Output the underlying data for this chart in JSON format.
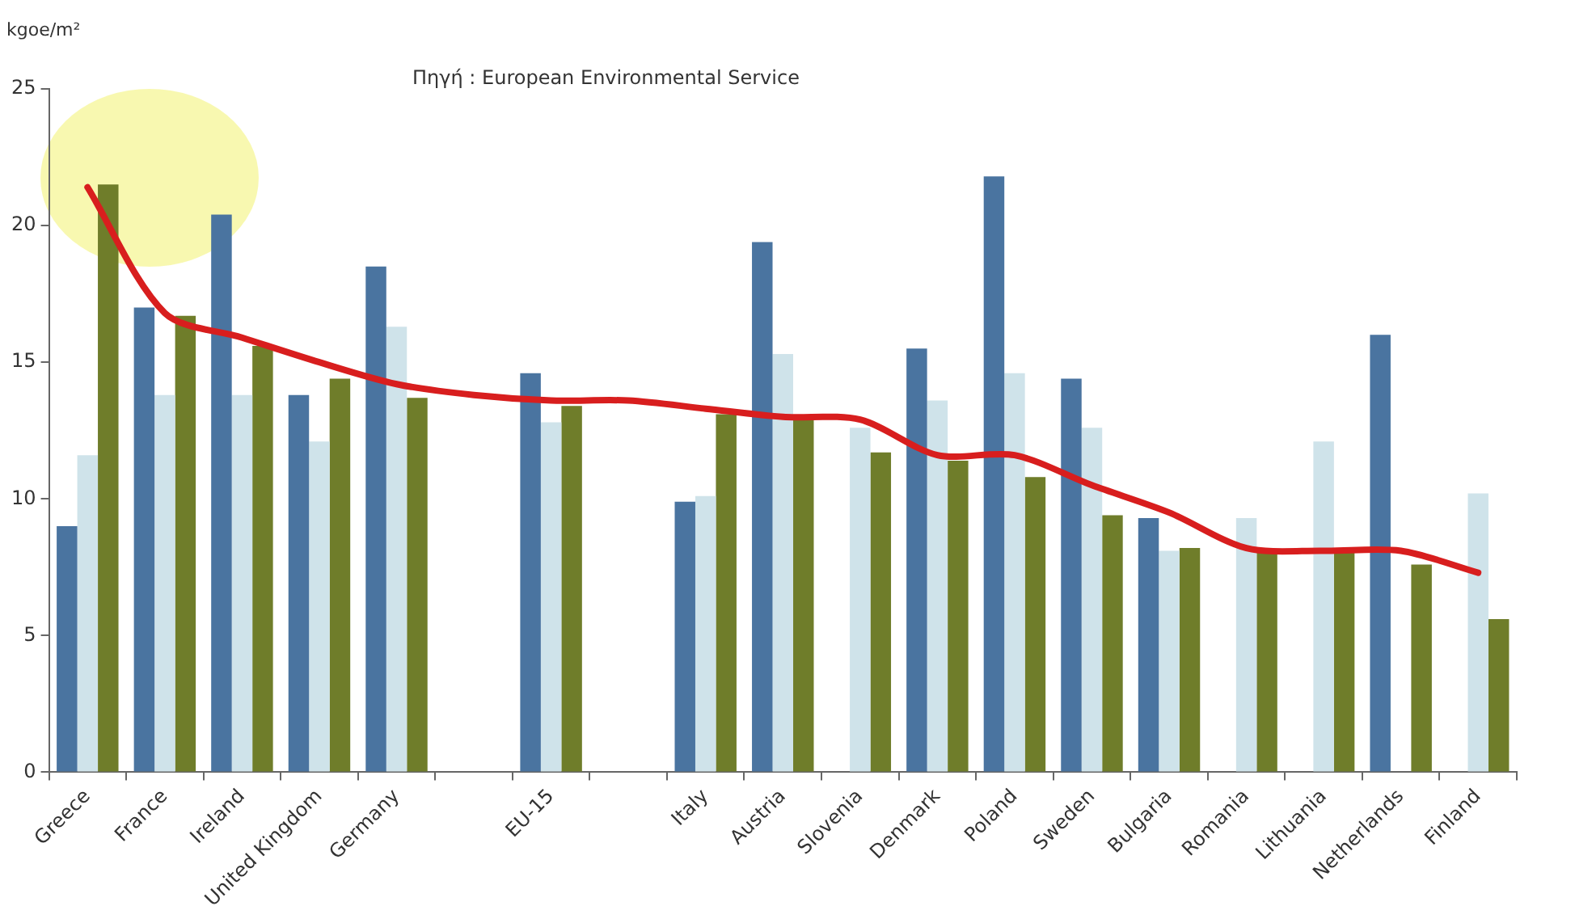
{
  "chart_data": {
    "type": "bar",
    "ylabel": "kgoe/m²",
    "annotations": [
      "Πηγή : European Environmental Service"
    ],
    "categories": [
      "Greece",
      "France",
      "Ireland",
      "United Kingdom",
      "Germany",
      null,
      "EU-15",
      null,
      "Italy",
      "Austria",
      "Slovenia",
      "Denmark",
      "Poland",
      "Sweden",
      "Bulgaria",
      "Romania",
      "Lithuania",
      "Netherlands",
      "Finland"
    ],
    "series": [
      {
        "color": "#4a74a0",
        "values": [
          9.0,
          17.0,
          20.4,
          13.8,
          18.5,
          null,
          14.6,
          null,
          9.9,
          19.4,
          null,
          15.5,
          21.8,
          14.4,
          9.3,
          null,
          null,
          16.0,
          null
        ]
      },
      {
        "color": "#cfe3ea",
        "values": [
          11.6,
          13.8,
          13.8,
          12.1,
          16.3,
          null,
          12.8,
          null,
          10.1,
          15.3,
          12.6,
          13.6,
          14.6,
          12.6,
          8.1,
          9.3,
          12.1,
          null,
          10.2
        ]
      },
      {
        "color": "#6f7d2a",
        "values": [
          21.5,
          16.7,
          15.6,
          14.4,
          13.7,
          null,
          13.4,
          null,
          13.1,
          13.0,
          11.7,
          11.4,
          10.8,
          9.4,
          8.2,
          8.1,
          8.1,
          7.6,
          5.6
        ]
      },
      {
        "type": "line",
        "color": "#d81e1e",
        "values": [
          21.4,
          16.8,
          15.9,
          15.0,
          14.2,
          13.8,
          13.6,
          13.6,
          13.3,
          13.0,
          12.9,
          11.6,
          11.6,
          10.5,
          9.5,
          8.2,
          8.1,
          8.1,
          7.3
        ]
      }
    ],
    "ylim": [
      0,
      25
    ],
    "yticks": [
      0,
      5,
      10,
      15,
      20,
      25
    ],
    "grid": false,
    "legend": false,
    "marker": "none"
  }
}
